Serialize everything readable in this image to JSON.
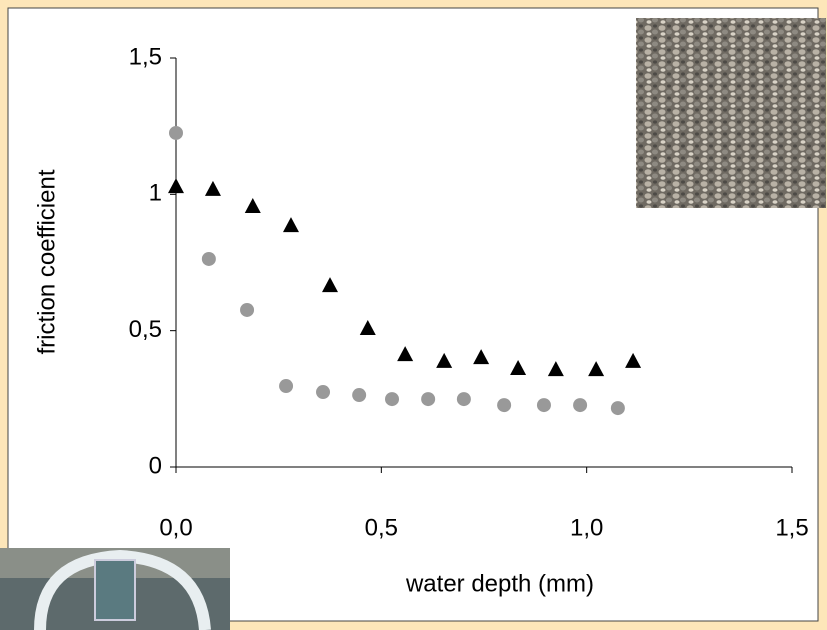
{
  "chart_data": {
    "type": "scatter",
    "xlabel": "water depth (mm)",
    "ylabel": "friction coefficient",
    "xlim": [
      0,
      1.5
    ],
    "ylim": [
      0,
      1.5
    ],
    "xticks": [
      {
        "value": 0,
        "label": "0,0"
      },
      {
        "value": 0.5,
        "label": "0,5"
      },
      {
        "value": 1,
        "label": "1,0"
      },
      {
        "value": 1.5,
        "label": "1,5"
      }
    ],
    "yticks": [
      0,
      {
        "value": 0.5,
        "label": "0,5"
      },
      1,
      {
        "value": 1.5,
        "label": "1,5"
      }
    ],
    "grid": false,
    "series": [
      {
        "color": "#999999",
        "marker": "circle",
        "x": [
          0,
          0.08,
          0.173,
          0.268,
          0.358,
          0.446,
          0.526,
          0.614,
          0.701,
          0.799,
          0.896,
          0.984,
          1.076
        ],
        "values": [
          1.225,
          0.763,
          0.576,
          0.297,
          0.275,
          0.264,
          0.249,
          0.249,
          0.249,
          0.227,
          0.227,
          0.227,
          0.216
        ]
      },
      {
        "color": "#000000",
        "marker": "triangle",
        "x": [
          0,
          0.09,
          0.187,
          0.28,
          0.375,
          0.467,
          0.558,
          0.653,
          0.743,
          0.833,
          0.925,
          1.023,
          1.113
        ],
        "values": [
          1.03,
          1.02,
          0.957,
          0.887,
          0.667,
          0.51,
          0.414,
          0.389,
          0.403,
          0.363,
          0.359,
          0.359,
          0.389
        ]
      }
    ]
  }
}
